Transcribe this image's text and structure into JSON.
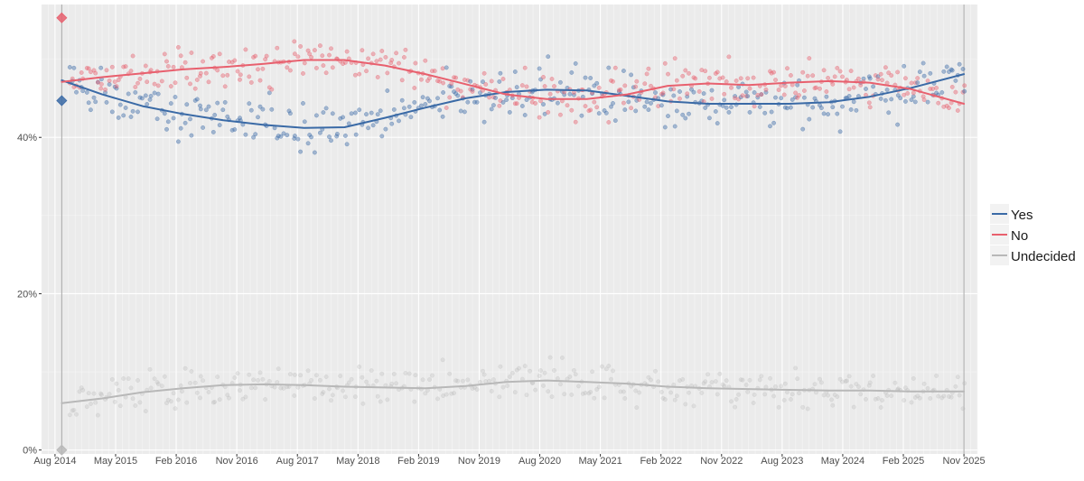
{
  "chart_data": {
    "type": "scatter",
    "title": "",
    "xlabel": "",
    "ylabel": "",
    "ylim": [
      -0.5,
      57
    ],
    "x_range": [
      "2014-06",
      "2026-01"
    ],
    "y_ticks": [
      {
        "value": 0,
        "label": "0%"
      },
      {
        "value": 20,
        "label": "20%"
      },
      {
        "value": 40,
        "label": "40%"
      }
    ],
    "x_ticks": [
      {
        "date": "2014-08",
        "label": "Aug 2014"
      },
      {
        "date": "2015-05",
        "label": "May 2015"
      },
      {
        "date": "2016-02",
        "label": "Feb 2016"
      },
      {
        "date": "2016-11",
        "label": "Nov 2016"
      },
      {
        "date": "2017-08",
        "label": "Aug 2017"
      },
      {
        "date": "2018-05",
        "label": "May 2018"
      },
      {
        "date": "2019-02",
        "label": "Feb 2019"
      },
      {
        "date": "2019-11",
        "label": "Nov 2019"
      },
      {
        "date": "2020-08",
        "label": "Aug 2020"
      },
      {
        "date": "2021-05",
        "label": "May 2021"
      },
      {
        "date": "2022-02",
        "label": "Feb 2022"
      },
      {
        "date": "2022-11",
        "label": "Nov 2022"
      },
      {
        "date": "2023-08",
        "label": "Aug 2023"
      },
      {
        "date": "2024-05",
        "label": "May 2024"
      },
      {
        "date": "2025-02",
        "label": "Feb 2025"
      },
      {
        "date": "2025-11",
        "label": "Nov 2025"
      }
    ],
    "reference_lines": [
      "2014-09",
      "2025-11"
    ],
    "referendum_result": [
      {
        "series": "Yes",
        "value": 44.7
      },
      {
        "series": "No",
        "value": 55.3
      },
      {
        "series": "Undecided",
        "value": 0
      }
    ],
    "legend": {
      "position": "right"
    },
    "series": [
      {
        "name": "Yes",
        "color": "#3a6aa6",
        "trend": [
          [
            "2014-09",
            47.3
          ],
          [
            "2015-03",
            45.5
          ],
          [
            "2015-09",
            44.0
          ],
          [
            "2016-03",
            43.0
          ],
          [
            "2016-09",
            42.2
          ],
          [
            "2017-03",
            41.6
          ],
          [
            "2017-09",
            41.2
          ],
          [
            "2018-03",
            41.3
          ],
          [
            "2018-09",
            42.5
          ],
          [
            "2019-03",
            43.8
          ],
          [
            "2019-09",
            45.0
          ],
          [
            "2020-03",
            45.8
          ],
          [
            "2020-09",
            46.1
          ],
          [
            "2021-03",
            46.0
          ],
          [
            "2021-09",
            45.3
          ],
          [
            "2022-03",
            44.6
          ],
          [
            "2022-09",
            44.3
          ],
          [
            "2023-03",
            44.3
          ],
          [
            "2023-09",
            44.3
          ],
          [
            "2024-03",
            44.5
          ],
          [
            "2024-09",
            45.2
          ],
          [
            "2025-03",
            46.3
          ],
          [
            "2025-11",
            48.1
          ]
        ]
      },
      {
        "name": "No",
        "color": "#e8606e",
        "trend": [
          [
            "2014-09",
            47.1
          ],
          [
            "2015-03",
            47.7
          ],
          [
            "2015-09",
            48.2
          ],
          [
            "2016-03",
            48.7
          ],
          [
            "2016-09",
            49.0
          ],
          [
            "2017-03",
            49.4
          ],
          [
            "2017-09",
            49.9
          ],
          [
            "2018-03",
            49.9
          ],
          [
            "2018-09",
            49.2
          ],
          [
            "2019-03",
            48.1
          ],
          [
            "2019-09",
            46.8
          ],
          [
            "2020-03",
            45.5
          ],
          [
            "2020-09",
            44.9
          ],
          [
            "2021-03",
            44.9
          ],
          [
            "2021-09",
            45.5
          ],
          [
            "2022-03",
            46.6
          ],
          [
            "2022-09",
            46.9
          ],
          [
            "2023-03",
            46.7
          ],
          [
            "2023-09",
            47.0
          ],
          [
            "2024-03",
            47.2
          ],
          [
            "2024-09",
            47.0
          ],
          [
            "2025-03",
            46.2
          ],
          [
            "2025-11",
            44.3
          ]
        ]
      },
      {
        "name": "Undecided",
        "color": "#b8b8b8",
        "trend": [
          [
            "2014-09",
            6.0
          ],
          [
            "2015-03",
            6.6
          ],
          [
            "2015-09",
            7.4
          ],
          [
            "2016-03",
            7.9
          ],
          [
            "2016-09",
            8.3
          ],
          [
            "2017-03",
            8.4
          ],
          [
            "2017-09",
            8.3
          ],
          [
            "2018-03",
            8.1
          ],
          [
            "2018-09",
            8.0
          ],
          [
            "2019-03",
            7.9
          ],
          [
            "2019-09",
            8.2
          ],
          [
            "2020-03",
            8.7
          ],
          [
            "2020-09",
            8.9
          ],
          [
            "2021-03",
            8.7
          ],
          [
            "2021-09",
            8.5
          ],
          [
            "2022-03",
            8.1
          ],
          [
            "2022-09",
            7.9
          ],
          [
            "2023-03",
            7.8
          ],
          [
            "2023-09",
            7.7
          ],
          [
            "2024-03",
            7.6
          ],
          [
            "2024-09",
            7.6
          ],
          [
            "2025-03",
            7.5
          ],
          [
            "2025-11",
            7.5
          ]
        ]
      }
    ]
  }
}
